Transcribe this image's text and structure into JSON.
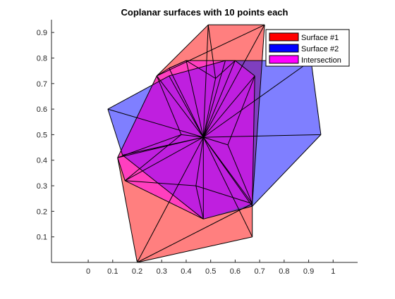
{
  "chart_data": {
    "type": "area",
    "title": "Coplanar surfaces with 10 points each",
    "xlabel": "",
    "ylabel": "",
    "xlim": [
      -0.15,
      1.1
    ],
    "ylim": [
      0,
      0.95
    ],
    "xticks": [
      0,
      0.1,
      0.2,
      0.3,
      0.4,
      0.5,
      0.6,
      0.7,
      0.8,
      0.9,
      1
    ],
    "xtick_labels": [
      "0",
      "0.1",
      "0.2",
      "0.3",
      "0.4",
      "0.5",
      "0.6",
      "0.7",
      "0.8",
      "0.9",
      "1"
    ],
    "yticks": [
      0.1,
      0.2,
      0.3,
      0.4,
      0.5,
      0.6,
      0.7,
      0.8,
      0.9
    ],
    "ytick_labels": [
      "0.1",
      "0.2",
      "0.3",
      "0.4",
      "0.5",
      "0.6",
      "0.7",
      "0.8",
      "0.9"
    ],
    "grid": false,
    "legend_position": "top-right",
    "series": [
      {
        "name": "Surface #1",
        "color": "#ff0000",
        "opacity": 0.5,
        "outline": [
          [
            0.2,
            0.0
          ],
          [
            0.12,
            0.41
          ],
          [
            0.28,
            0.73
          ],
          [
            0.49,
            0.93
          ],
          [
            0.72,
            0.93
          ],
          [
            0.67,
            0.23
          ],
          [
            0.67,
            0.1
          ]
        ]
      },
      {
        "name": "Surface #2",
        "color": "#0000ff",
        "opacity": 0.5,
        "outline": [
          [
            0.08,
            0.6
          ],
          [
            0.14,
            0.42
          ],
          [
            0.47,
            0.17
          ],
          [
            0.67,
            0.22
          ],
          [
            0.95,
            0.5
          ],
          [
            0.91,
            0.79
          ],
          [
            0.56,
            0.79
          ],
          [
            0.33,
            0.73
          ]
        ]
      },
      {
        "name": "Intersection",
        "color": "#ff00ff",
        "opacity": 0.5,
        "outline": [
          [
            0.15,
            0.32
          ],
          [
            0.12,
            0.41
          ],
          [
            0.28,
            0.73
          ],
          [
            0.33,
            0.76
          ],
          [
            0.4,
            0.79
          ],
          [
            0.6,
            0.79
          ],
          [
            0.68,
            0.73
          ],
          [
            0.67,
            0.23
          ],
          [
            0.47,
            0.17
          ]
        ]
      }
    ],
    "mesh_edges": [
      [
        [
          0.2,
          0.0
        ],
        [
          0.67,
          0.1
        ]
      ],
      [
        [
          0.2,
          0.0
        ],
        [
          0.12,
          0.41
        ]
      ],
      [
        [
          0.2,
          0.0
        ],
        [
          0.47,
          0.49
        ]
      ],
      [
        [
          0.2,
          0.0
        ],
        [
          0.67,
          0.23
        ]
      ],
      [
        [
          0.67,
          0.1
        ],
        [
          0.67,
          0.23
        ]
      ],
      [
        [
          0.67,
          0.1
        ],
        [
          0.47,
          0.49
        ]
      ],
      [
        [
          0.12,
          0.41
        ],
        [
          0.47,
          0.49
        ]
      ],
      [
        [
          0.12,
          0.41
        ],
        [
          0.28,
          0.73
        ]
      ],
      [
        [
          0.28,
          0.73
        ],
        [
          0.47,
          0.49
        ]
      ],
      [
        [
          0.28,
          0.73
        ],
        [
          0.49,
          0.93
        ]
      ],
      [
        [
          0.49,
          0.93
        ],
        [
          0.72,
          0.93
        ]
      ],
      [
        [
          0.49,
          0.93
        ],
        [
          0.47,
          0.49
        ]
      ],
      [
        [
          0.72,
          0.93
        ],
        [
          0.47,
          0.49
        ]
      ],
      [
        [
          0.72,
          0.93
        ],
        [
          0.67,
          0.23
        ]
      ],
      [
        [
          0.67,
          0.23
        ],
        [
          0.47,
          0.49
        ]
      ],
      [
        [
          0.28,
          0.73
        ],
        [
          0.72,
          0.93
        ]
      ],
      [
        [
          0.08,
          0.6
        ],
        [
          0.14,
          0.42
        ]
      ],
      [
        [
          0.08,
          0.6
        ],
        [
          0.33,
          0.73
        ]
      ],
      [
        [
          0.14,
          0.42
        ],
        [
          0.47,
          0.17
        ]
      ],
      [
        [
          0.47,
          0.17
        ],
        [
          0.67,
          0.22
        ]
      ],
      [
        [
          0.67,
          0.22
        ],
        [
          0.95,
          0.5
        ]
      ],
      [
        [
          0.95,
          0.5
        ],
        [
          0.91,
          0.79
        ]
      ],
      [
        [
          0.91,
          0.79
        ],
        [
          0.56,
          0.79
        ]
      ],
      [
        [
          0.56,
          0.79
        ],
        [
          0.33,
          0.73
        ]
      ],
      [
        [
          0.08,
          0.6
        ],
        [
          0.47,
          0.49
        ]
      ],
      [
        [
          0.14,
          0.42
        ],
        [
          0.47,
          0.49
        ]
      ],
      [
        [
          0.47,
          0.17
        ],
        [
          0.47,
          0.49
        ]
      ],
      [
        [
          0.67,
          0.22
        ],
        [
          0.47,
          0.49
        ]
      ],
      [
        [
          0.95,
          0.5
        ],
        [
          0.47,
          0.49
        ]
      ],
      [
        [
          0.91,
          0.79
        ],
        [
          0.47,
          0.49
        ]
      ],
      [
        [
          0.56,
          0.79
        ],
        [
          0.47,
          0.49
        ]
      ],
      [
        [
          0.33,
          0.73
        ],
        [
          0.47,
          0.49
        ]
      ],
      [
        [
          0.15,
          0.32
        ],
        [
          0.47,
          0.49
        ]
      ],
      [
        [
          0.4,
          0.79
        ],
        [
          0.47,
          0.49
        ]
      ],
      [
        [
          0.33,
          0.76
        ],
        [
          0.47,
          0.49
        ]
      ],
      [
        [
          0.6,
          0.79
        ],
        [
          0.47,
          0.49
        ]
      ],
      [
        [
          0.68,
          0.73
        ],
        [
          0.47,
          0.49
        ]
      ],
      [
        [
          0.15,
          0.32
        ],
        [
          0.47,
          0.17
        ]
      ],
      [
        [
          0.15,
          0.32
        ],
        [
          0.12,
          0.41
        ]
      ],
      [
        [
          0.4,
          0.79
        ],
        [
          0.33,
          0.76
        ]
      ],
      [
        [
          0.6,
          0.79
        ],
        [
          0.68,
          0.73
        ]
      ],
      [
        [
          0.28,
          0.73
        ],
        [
          0.33,
          0.76
        ]
      ],
      [
        [
          0.33,
          0.76
        ],
        [
          0.4,
          0.79
        ]
      ],
      [
        [
          0.4,
          0.79
        ],
        [
          0.6,
          0.79
        ]
      ],
      [
        [
          0.68,
          0.73
        ],
        [
          0.67,
          0.23
        ]
      ],
      [
        [
          0.15,
          0.32
        ],
        [
          0.38,
          0.5
        ]
      ],
      [
        [
          0.38,
          0.5
        ],
        [
          0.47,
          0.49
        ]
      ],
      [
        [
          0.38,
          0.5
        ],
        [
          0.28,
          0.73
        ]
      ],
      [
        [
          0.38,
          0.5
        ],
        [
          0.12,
          0.41
        ]
      ],
      [
        [
          0.52,
          0.72
        ],
        [
          0.47,
          0.49
        ]
      ],
      [
        [
          0.52,
          0.72
        ],
        [
          0.49,
          0.93
        ]
      ],
      [
        [
          0.52,
          0.72
        ],
        [
          0.6,
          0.79
        ]
      ],
      [
        [
          0.52,
          0.72
        ],
        [
          0.4,
          0.79
        ]
      ],
      [
        [
          0.57,
          0.46
        ],
        [
          0.67,
          0.23
        ]
      ],
      [
        [
          0.57,
          0.46
        ],
        [
          0.68,
          0.73
        ]
      ],
      [
        [
          0.57,
          0.46
        ],
        [
          0.47,
          0.49
        ]
      ],
      [
        [
          0.44,
          0.3
        ],
        [
          0.47,
          0.17
        ]
      ],
      [
        [
          0.44,
          0.3
        ],
        [
          0.15,
          0.32
        ]
      ],
      [
        [
          0.44,
          0.3
        ],
        [
          0.47,
          0.49
        ]
      ],
      [
        [
          0.44,
          0.3
        ],
        [
          0.67,
          0.23
        ]
      ]
    ]
  }
}
